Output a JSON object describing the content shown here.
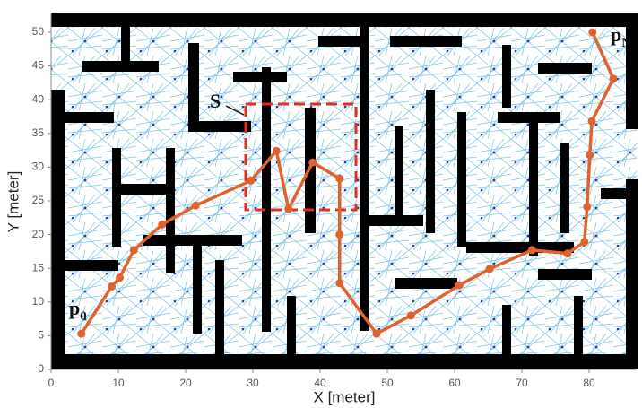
{
  "chart_data": {
    "type": "line",
    "xlabel": "X [meter]",
    "ylabel": "Y [meter]",
    "x": [
      4.5,
      9,
      10.2,
      12.3,
      16.5,
      21.5,
      29.7,
      33.5,
      35.3,
      38.9,
      42.9,
      42.9,
      42.9,
      48.4,
      53.5,
      60.7,
      65.2,
      71.5,
      76.8,
      79.3,
      79.7,
      80.1,
      80.4,
      83.6,
      80.5
    ],
    "values": [
      5.3,
      12.3,
      13.6,
      17.7,
      21.5,
      24.3,
      28,
      32.4,
      23.8,
      30.7,
      28.3,
      20,
      12.8,
      5.3,
      8,
      12.5,
      14.9,
      17.7,
      17.2,
      18.9,
      24.1,
      31.8,
      36.8,
      43.1,
      50
    ],
    "color": "#e0622c",
    "xlim": [
      0,
      87
    ],
    "ylim": [
      0,
      53
    ],
    "xticks": [
      0,
      10,
      20,
      30,
      40,
      50,
      60,
      70,
      80
    ],
    "yticks": [
      0,
      5,
      10,
      15,
      20,
      25,
      30,
      35,
      40,
      45,
      50
    ],
    "annotations": [
      {
        "text": "S"
      },
      {
        "text": "p",
        "subscript": "0"
      },
      {
        "text": "p",
        "subscript": "N"
      }
    ]
  }
}
